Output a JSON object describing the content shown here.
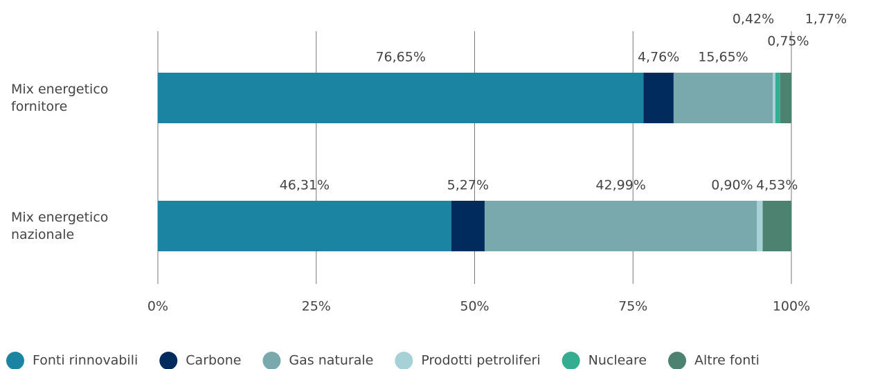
{
  "chart_data": {
    "type": "stacked_barh",
    "categories": [
      "Mix energetico fornitore",
      "Mix energetico nazionale"
    ],
    "series": [
      {
        "name": "Fonti rinnovabili",
        "color": "#1b84a3",
        "values": [
          76.65,
          46.31
        ],
        "value_labels": [
          "76,65%",
          "46,31%"
        ]
      },
      {
        "name": "Carbone",
        "color": "#002b5c",
        "values": [
          4.76,
          5.27
        ],
        "value_labels": [
          "4,76%",
          "5,27%"
        ]
      },
      {
        "name": "Gas naturale",
        "color": "#79a9ad",
        "values": [
          15.65,
          42.99
        ],
        "value_labels": [
          "15,65%",
          "42,99%"
        ]
      },
      {
        "name": "Prodotti petroliferi",
        "color": "#a6d1d6",
        "values": [
          0.42,
          0.9
        ],
        "value_labels": [
          "0,42%",
          "0,90%"
        ]
      },
      {
        "name": "Nucleare",
        "color": "#35ad91",
        "values": [
          0.75,
          0
        ],
        "value_labels": [
          "0,75%",
          null
        ]
      },
      {
        "name": "Altre fonti",
        "color": "#4d8170",
        "values": [
          1.77,
          4.53
        ],
        "value_labels": [
          "1,77%",
          "4,53%"
        ]
      }
    ],
    "xlim": [
      0,
      100
    ],
    "xticks": [
      {
        "value": 0,
        "label": "0%"
      },
      {
        "value": 25,
        "label": "25%"
      },
      {
        "value": 50,
        "label": "50%"
      },
      {
        "value": 75,
        "label": "75%"
      },
      {
        "value": 100,
        "label": "100%"
      }
    ],
    "grid": true,
    "legend": "bottom"
  }
}
